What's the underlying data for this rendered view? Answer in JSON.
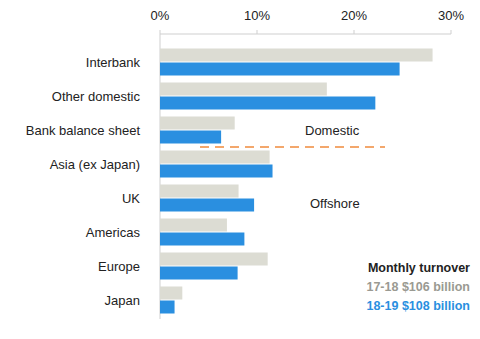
{
  "chart_data": {
    "type": "bar",
    "orientation": "horizontal",
    "categories": [
      "Interbank",
      "Other domestic",
      "Bank balance sheet",
      "Asia (ex Japan)",
      "UK",
      "Americas",
      "Europe",
      "Japan"
    ],
    "series": [
      {
        "name": "17-18 $106 billion",
        "color": "#dcdcd3",
        "values": [
          28.1,
          17.2,
          7.7,
          11.3,
          8.1,
          6.9,
          11.1,
          2.3
        ]
      },
      {
        "name": "18-19 $108 billion",
        "color": "#2a8fe0",
        "values": [
          24.7,
          22.2,
          6.3,
          11.6,
          9.7,
          8.7,
          8.0,
          1.5
        ]
      }
    ],
    "xlim": [
      0,
      30
    ],
    "xticks": [
      {
        "value": 0,
        "label": "0%"
      },
      {
        "value": 10,
        "label": "10%"
      },
      {
        "value": 20,
        "label": "20%"
      },
      {
        "value": 30,
        "label": "30%"
      }
    ],
    "annotations": [
      "Domestic",
      "Offshore"
    ],
    "legend_title": "Monthly turnover",
    "legend": "lower right",
    "grid": false
  }
}
